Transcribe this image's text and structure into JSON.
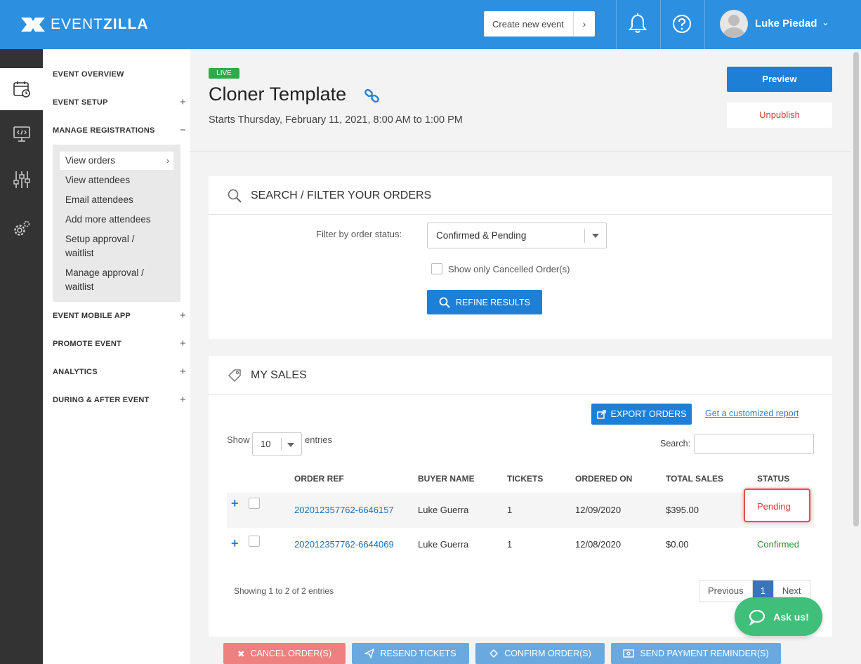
{
  "app": {
    "logo_light": "EVENT",
    "logo_bold": "ZILLA"
  },
  "header": {
    "create_label": "Create new event",
    "user_name": "Luke Piedad"
  },
  "nav": {
    "event_overview": "EVENT OVERVIEW",
    "event_setup": "EVENT SETUP",
    "manage_registrations": "MANAGE REGISTRATIONS",
    "sub": {
      "view_orders": "View orders",
      "view_attendees": "View attendees",
      "email_attendees": "Email attendees",
      "add_more": "Add more attendees",
      "setup_approval_1": "Setup approval /",
      "setup_approval_2": "waitlist",
      "manage_approval_1": "Manage approval /",
      "manage_approval_2": "waitlist"
    },
    "event_mobile_app": "EVENT MOBILE APP",
    "promote_event": "PROMOTE EVENT",
    "analytics": "ANALYTICS",
    "during_after": "DURING & AFTER EVENT",
    "plus": "+",
    "minus": "−"
  },
  "event": {
    "badge": "LIVE",
    "title": "Cloner Template",
    "date": "Starts Thursday, February 11, 2021, 8:00 AM to 1:00 PM",
    "preview_label": "Preview",
    "unpublish_label": "Unpublish"
  },
  "filter": {
    "title": "SEARCH / FILTER YOUR ORDERS",
    "label": "Filter by order status:",
    "selected": "Confirmed & Pending",
    "cancelled_label": "Show only Cancelled Order(s)",
    "refine_label": "REFINE RESULTS"
  },
  "sales": {
    "title": "MY SALES",
    "export_label": "EXPORT ORDERS",
    "custom_report": "Get a customized report",
    "show": "Show",
    "entries_value": "10",
    "entries": "entries",
    "search_label": "Search:",
    "columns": [
      "ORDER REF",
      "BUYER NAME",
      "TICKETS",
      "ORDERED ON",
      "TOTAL SALES",
      "STATUS"
    ],
    "rows": [
      {
        "ref": "202012357762-6646157",
        "buyer": "Luke Guerra",
        "tickets": "1",
        "ordered": "12/09/2020",
        "total": "$395.00",
        "status": "Pending"
      },
      {
        "ref": "202012357762-6644069",
        "buyer": "Luke Guerra",
        "tickets": "1",
        "ordered": "12/08/2020",
        "total": "$0.00",
        "status": "Confirmed"
      }
    ],
    "expand": "+",
    "showing": "Showing 1 to 2 of 2 entries",
    "pager": {
      "prev": "Previous",
      "current": "1",
      "next": "Next"
    }
  },
  "actions": {
    "cancel": "CANCEL ORDER(S)",
    "resend": "RESEND TICKETS",
    "confirm": "CONFIRM ORDER(S)",
    "remind": "SEND PAYMENT REMINDER(S)"
  },
  "chat": {
    "label": "Ask us!"
  },
  "colors": {
    "topbar": "#2d8fe0",
    "primary": "#1e7fd6",
    "live": "#2eaa4b",
    "danger": "#e03a3a",
    "confirmed": "#2e8b2e"
  }
}
